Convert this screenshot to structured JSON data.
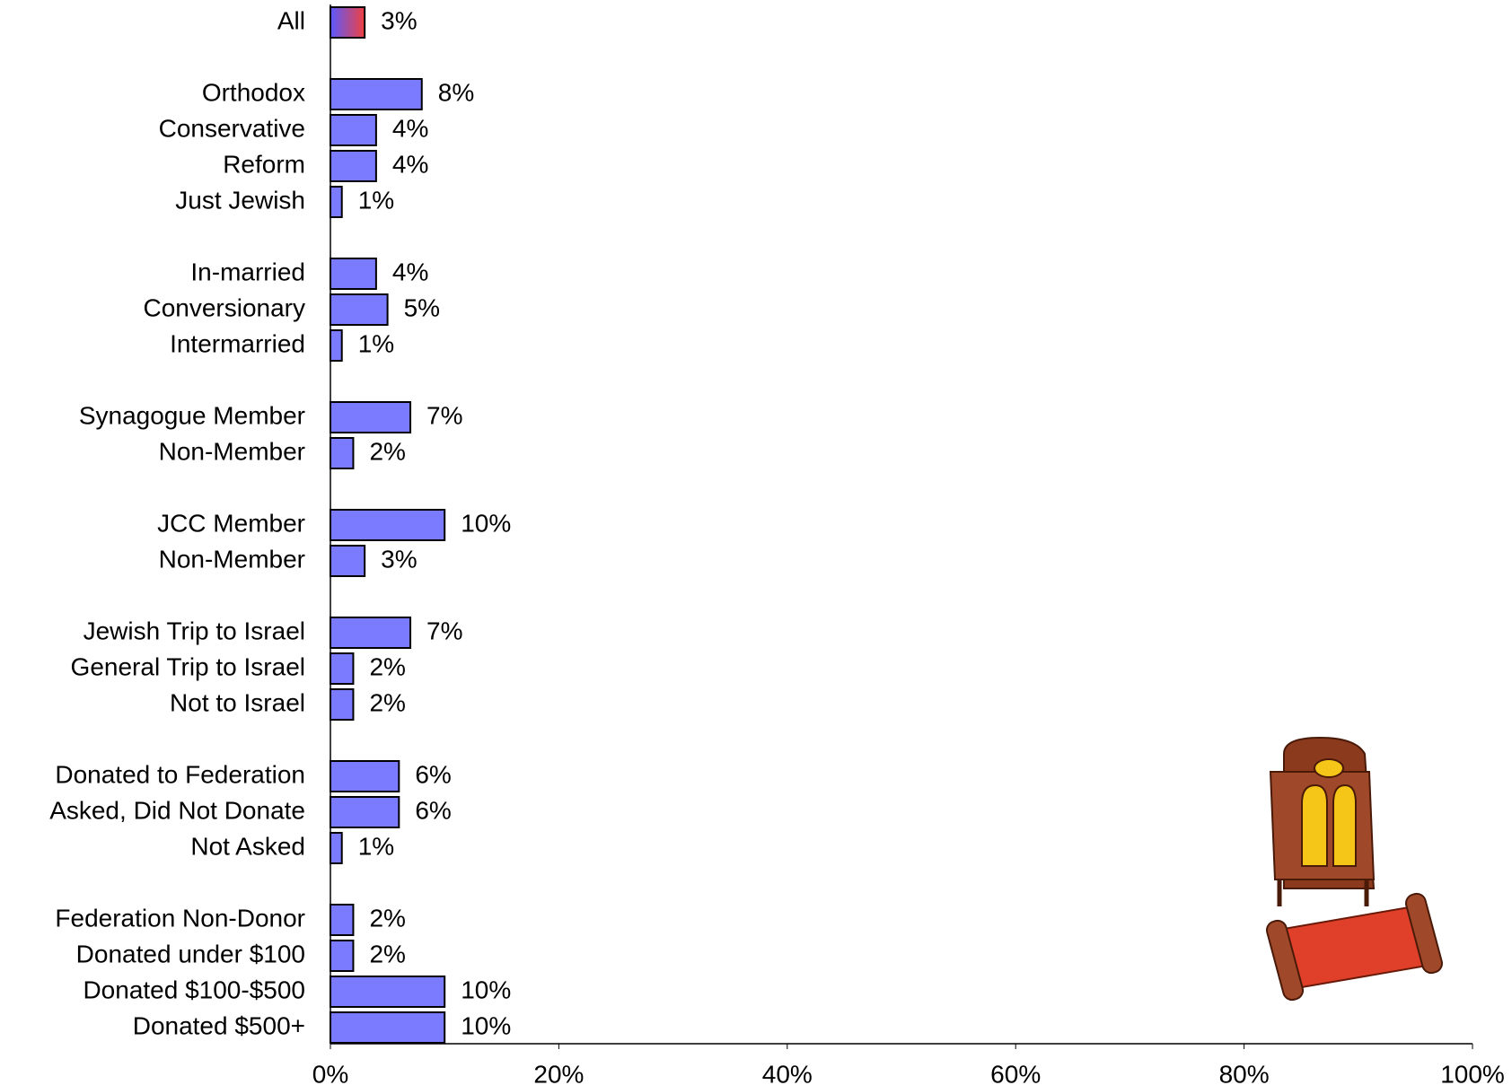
{
  "chart_data": {
    "type": "bar",
    "orientation": "horizontal",
    "categories": [
      "All",
      null,
      "Orthodox",
      "Conservative",
      "Reform",
      "Just Jewish",
      null,
      "In-married",
      "Conversionary",
      "Intermarried",
      null,
      "Synagogue Member",
      "Non-Member",
      null,
      "JCC Member",
      "Non-Member",
      null,
      "Jewish Trip to Israel",
      "General Trip to Israel",
      "Not to Israel",
      null,
      "Donated to Federation",
      "Asked, Did Not Donate",
      "Not Asked",
      null,
      "Federation Non-Donor",
      "Donated under $100",
      "Donated $100-$500",
      "Donated $500+"
    ],
    "values": [
      3,
      null,
      8,
      4,
      4,
      1,
      null,
      4,
      5,
      1,
      null,
      7,
      2,
      null,
      10,
      3,
      null,
      7,
      2,
      2,
      null,
      6,
      6,
      1,
      null,
      2,
      2,
      10,
      10
    ],
    "value_labels": [
      "3%",
      null,
      "8%",
      "4%",
      "4%",
      "1%",
      null,
      "4%",
      "5%",
      "1%",
      null,
      "7%",
      "2%",
      null,
      "10%",
      "3%",
      null,
      "7%",
      "2%",
      "2%",
      null,
      "6%",
      "6%",
      "1%",
      null,
      "2%",
      "2%",
      "10%",
      "10%"
    ],
    "color": "#7b7bff",
    "first_bar_gradient": [
      "#5a5aff",
      "#f04040"
    ],
    "xlim": [
      0,
      100
    ],
    "xticks": [
      {
        "value": 0,
        "label": "0%"
      },
      {
        "value": 20,
        "label": "20%"
      },
      {
        "value": 40,
        "label": "40%"
      },
      {
        "value": 60,
        "label": "60%"
      },
      {
        "value": 80,
        "label": "80%"
      },
      {
        "value": 100,
        "label": "100%"
      }
    ]
  }
}
